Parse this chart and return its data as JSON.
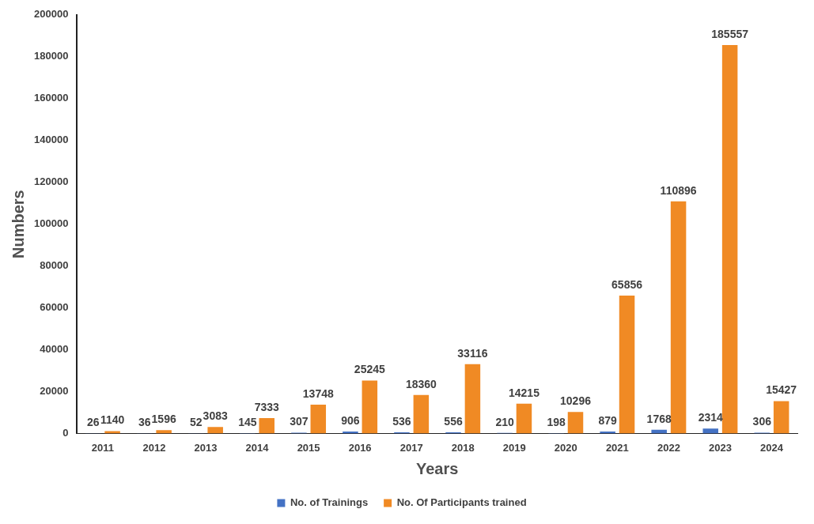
{
  "chart_data": {
    "type": "bar",
    "xlabel": "Years",
    "ylabel": "Numbers",
    "categories": [
      "2011",
      "2012",
      "2013",
      "2014",
      "2015",
      "2016",
      "2017",
      "2018",
      "2019",
      "2020",
      "2021",
      "2022",
      "2023",
      "2024"
    ],
    "series": [
      {
        "name": "No. of Trainings",
        "color": "#4472c4",
        "values": [
          26,
          36,
          52,
          145,
          307,
          906,
          536,
          556,
          210,
          198,
          879,
          1768,
          2314,
          306
        ]
      },
      {
        "name": "No. Of Participants trained",
        "color": "#f08a24",
        "values": [
          1140,
          1596,
          3083,
          7333,
          13748,
          25245,
          18360,
          33116,
          14215,
          10296,
          65856,
          110896,
          185557,
          15427
        ]
      }
    ],
    "ylim": [
      0,
      200000
    ],
    "yticks": [
      0,
      20000,
      40000,
      60000,
      80000,
      100000,
      120000,
      140000,
      160000,
      180000,
      200000
    ],
    "grid": false,
    "legend": "bottom",
    "data_labels": true
  }
}
